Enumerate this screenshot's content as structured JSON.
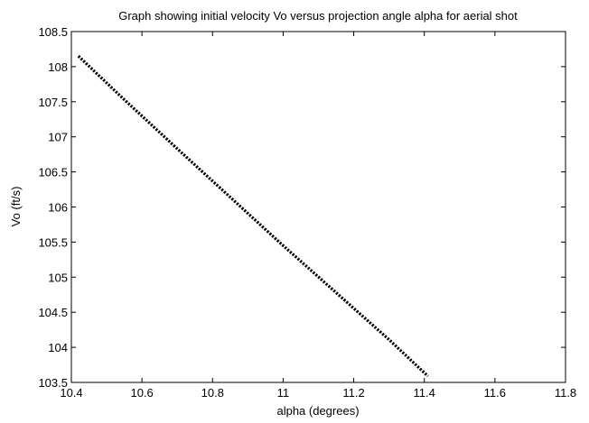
{
  "chart_data": {
    "type": "line",
    "title": "Graph showing initial velocity Vo versus projection angle alpha for aerial shot",
    "xlabel": "alpha (degrees)",
    "ylabel": "Vo (ft/s)",
    "xlim": [
      10.4,
      11.8
    ],
    "ylim": [
      103.5,
      108.5
    ],
    "xticks": [
      "10.4",
      "10.6",
      "10.8",
      "11",
      "11.2",
      "11.4",
      "11.6",
      "11.8"
    ],
    "yticks": [
      "103.5",
      "104",
      "104.5",
      "105",
      "105.5",
      "106",
      "106.5",
      "107",
      "107.5",
      "108",
      "108.5"
    ],
    "grid": false,
    "series": [
      {
        "line_style": "dotted",
        "color": "#000000",
        "x": [
          10.42,
          10.55,
          10.7,
          10.85,
          11.0,
          11.15,
          11.3,
          11.41
        ],
        "y": [
          108.15,
          107.53,
          106.83,
          106.14,
          105.45,
          104.78,
          104.11,
          103.59
        ]
      }
    ]
  }
}
